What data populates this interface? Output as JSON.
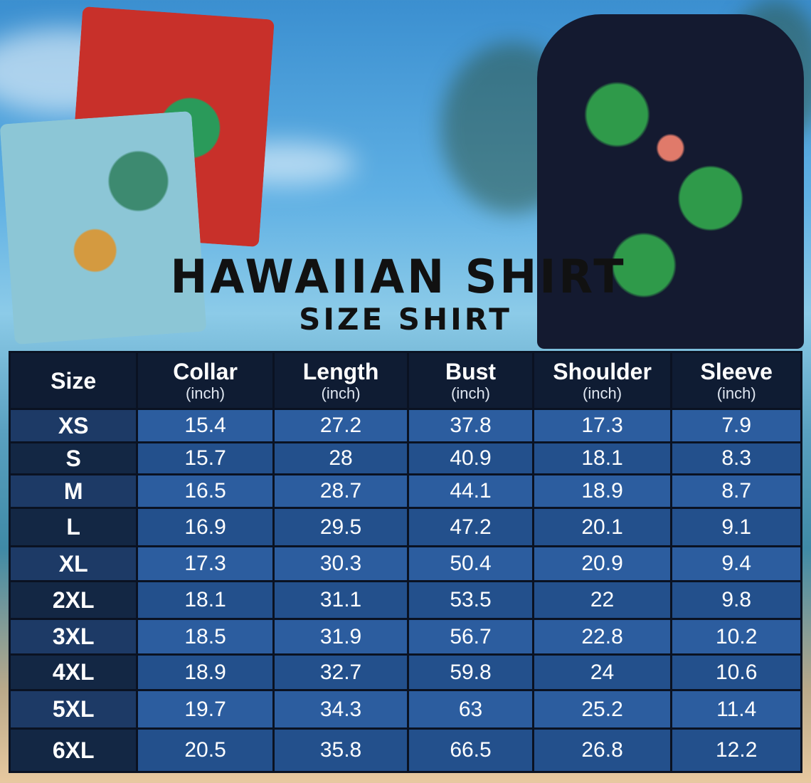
{
  "title": "HAWAIIAN SHIRT",
  "subtitle": "SIZE SHIRT",
  "table": {
    "headers": [
      {
        "label": "Size",
        "unit": ""
      },
      {
        "label": "Collar",
        "unit": "(inch)"
      },
      {
        "label": "Length",
        "unit": "(inch)"
      },
      {
        "label": "Bust",
        "unit": "(inch)"
      },
      {
        "label": "Shoulder",
        "unit": "(inch)"
      },
      {
        "label": "Sleeve",
        "unit": "(inch)"
      }
    ],
    "rows": [
      [
        "XS",
        "15.4",
        "27.2",
        "37.8",
        "17.3",
        "7.9"
      ],
      [
        "S",
        "15.7",
        "28",
        "40.9",
        "18.1",
        "8.3"
      ],
      [
        "M",
        "16.5",
        "28.7",
        "44.1",
        "18.9",
        "8.7"
      ],
      [
        "L",
        "16.9",
        "29.5",
        "47.2",
        "20.1",
        "9.1"
      ],
      [
        "XL",
        "17.3",
        "30.3",
        "50.4",
        "20.9",
        "9.4"
      ],
      [
        "2XL",
        "18.1",
        "31.1",
        "53.5",
        "22",
        "9.8"
      ],
      [
        "3XL",
        "18.5",
        "31.9",
        "56.7",
        "22.8",
        "10.2"
      ],
      [
        "4XL",
        "18.9",
        "32.7",
        "59.8",
        "24",
        "10.6"
      ],
      [
        "5XL",
        "19.7",
        "34.3",
        "63",
        "25.2",
        "11.4"
      ],
      [
        "6XL",
        "20.5",
        "35.8",
        "66.5",
        "26.8",
        "12.2"
      ]
    ]
  }
}
